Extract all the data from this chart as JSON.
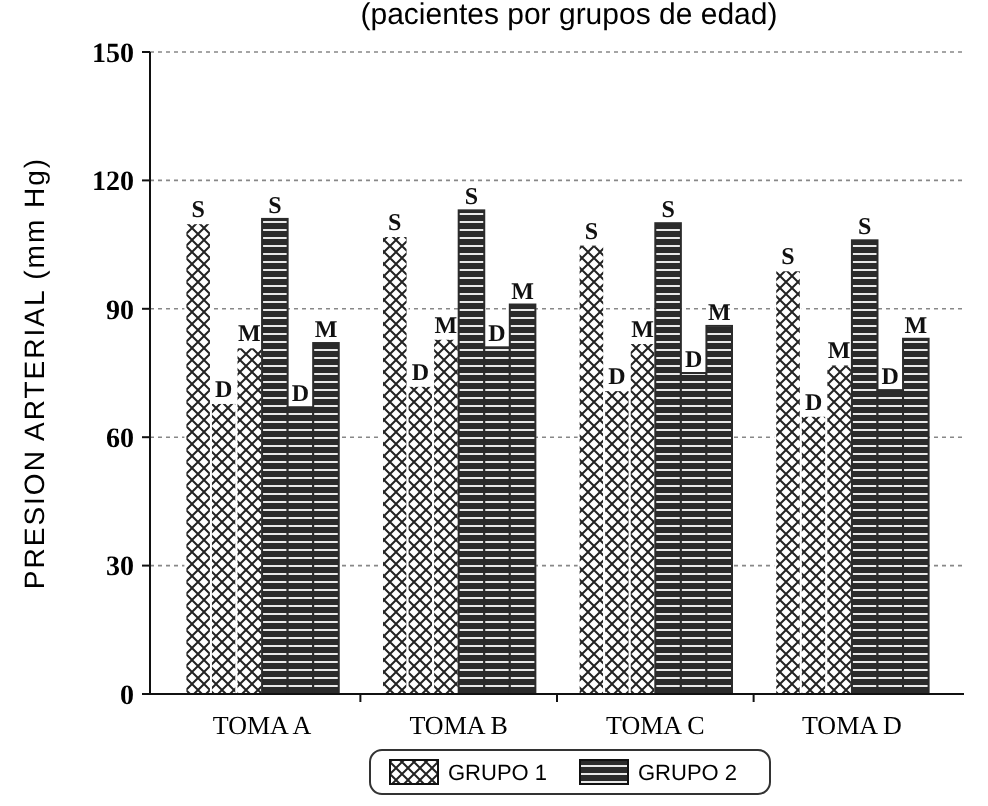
{
  "chart_data": {
    "type": "bar",
    "title": "(pacientes por grupos de edad)",
    "ylabel": "PRESION ARTERIAL (mm Hg)",
    "categories": [
      "TOMA A",
      "TOMA B",
      "TOMA C",
      "TOMA D"
    ],
    "ylim": [
      0,
      150
    ],
    "yticks": [
      0,
      30,
      60,
      90,
      120,
      150
    ],
    "grid": "y",
    "legend": "bottom",
    "series": [
      {
        "name": "GRUPO 1",
        "color": "#ffffff",
        "values": [
          110,
          107,
          105,
          99
        ],
        "value_labels": [
          "S",
          "S",
          "S",
          "S"
        ]
      },
      {
        "color": "#ffffff",
        "values": [
          68,
          72,
          71,
          65
        ],
        "value_labels": [
          "D",
          "D",
          "D",
          "D"
        ]
      },
      {
        "color": "#ffffff",
        "values": [
          81,
          83,
          82,
          77
        ],
        "value_labels": [
          "M",
          "M",
          "M",
          "M"
        ]
      },
      {
        "name": "GRUPO 2",
        "color": "#2b2b2b",
        "values": [
          111,
          113,
          110,
          106
        ],
        "value_labels": [
          "S",
          "S",
          "S",
          "S"
        ]
      },
      {
        "color": "#2b2b2b",
        "values": [
          67,
          81,
          75,
          71
        ],
        "value_labels": [
          "D",
          "D",
          "D",
          "D"
        ]
      },
      {
        "color": "#2b2b2b",
        "values": [
          82,
          91,
          86,
          83
        ],
        "value_labels": [
          "M",
          "M",
          "M",
          "M"
        ]
      }
    ]
  }
}
